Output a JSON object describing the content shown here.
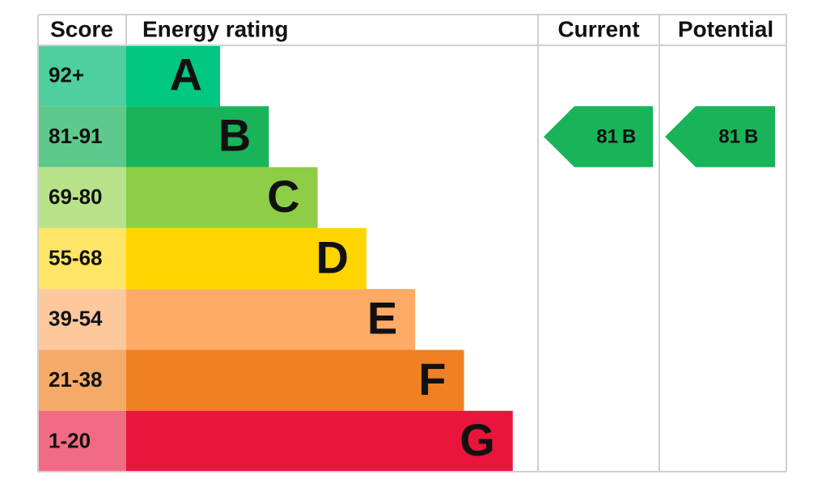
{
  "header": {
    "score": "Score",
    "energy_rating": "Energy rating",
    "current": "Current",
    "potential": "Potential"
  },
  "rows": [
    {
      "score": "92+",
      "band": "A",
      "color": "#00c781",
      "score_color": "#4fcfa0"
    },
    {
      "score": "81-91",
      "band": "B",
      "color": "#19b459",
      "score_color": "#5ec98a"
    },
    {
      "score": "69-80",
      "band": "C",
      "color": "#8dce46",
      "score_color": "#b8e289"
    },
    {
      "score": "55-68",
      "band": "D",
      "color": "#ffd500",
      "score_color": "#ffe566"
    },
    {
      "score": "39-54",
      "band": "E",
      "color": "#fcaa65",
      "score_color": "#fdc89c"
    },
    {
      "score": "21-38",
      "band": "F",
      "color": "#ef8023",
      "score_color": "#f5aa68"
    },
    {
      "score": "1-20",
      "band": "G",
      "color": "#e9153b",
      "score_color": "#f06c84"
    }
  ],
  "current": {
    "score": 81,
    "band": "B",
    "color": "#19b459"
  },
  "potential": {
    "score": 81,
    "band": "B",
    "color": "#19b459"
  }
}
